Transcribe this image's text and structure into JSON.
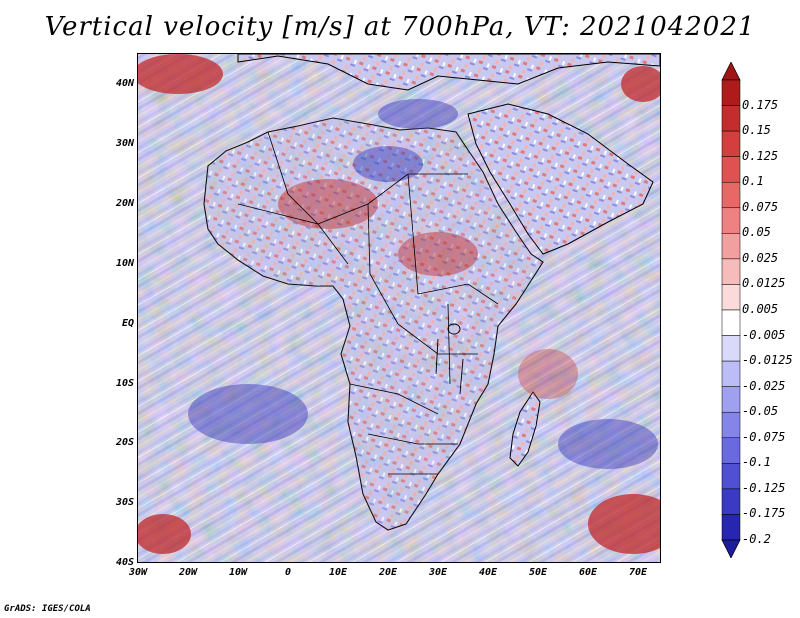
{
  "title": "Vertical velocity [m/s] at 700hPa, VT: 2021042021",
  "credit": "GrADS: IGES/COLA",
  "map": {
    "lat_labels": [
      "40N",
      "30N",
      "20N",
      "10N",
      "EQ",
      "10S",
      "20S",
      "30S",
      "40S"
    ],
    "lon_labels": [
      "30W",
      "20W",
      "10W",
      "0",
      "10E",
      "20E",
      "30E",
      "40E",
      "50E",
      "60E",
      "70E"
    ],
    "lat_range": [
      -40,
      45
    ],
    "lon_range": [
      -30,
      75
    ]
  },
  "colorbar": {
    "labels": [
      "0.175",
      "0.15",
      "0.125",
      "0.1",
      "0.075",
      "0.05",
      "0.025",
      "0.0125",
      "0.005",
      "-0.005",
      "-0.0125",
      "-0.025",
      "-0.05",
      "-0.075",
      "-0.1",
      "-0.125",
      "-0.175",
      "-0.2"
    ],
    "colors": [
      "#b01a1a",
      "#c42d2d",
      "#d43e3e",
      "#e05252",
      "#e86868",
      "#ee8282",
      "#f29f9f",
      "#f6bcbc",
      "#fadada",
      "#ffffff",
      "#d9d9fa",
      "#bcbcf6",
      "#a0a0f0",
      "#8585e8",
      "#6a6ae0",
      "#5050d4",
      "#3a3ac4",
      "#2626b0"
    ],
    "top_arrow_color": "#a01515",
    "bottom_arrow_color": "#1c1c9c"
  }
}
